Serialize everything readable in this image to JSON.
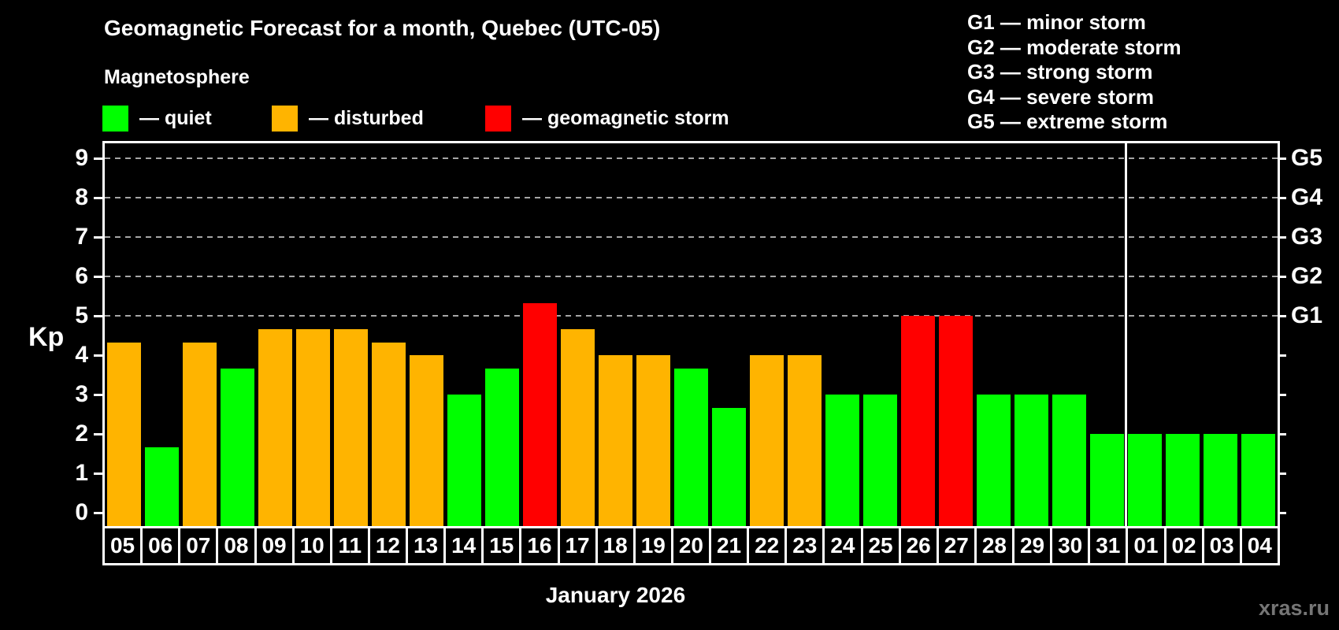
{
  "page": {
    "title": "Geomagnetic Forecast for a month, Quebec (UTC-05)",
    "subtitle": "Magnetosphere",
    "watermark": "xras.ru"
  },
  "legend": {
    "items": [
      {
        "name": "quiet",
        "label": "— quiet",
        "color": "#00ff00",
        "x": 130
      },
      {
        "name": "disturbed",
        "label": "— disturbed",
        "color": "#ffb400",
        "x": 345
      },
      {
        "name": "geomagnetic-storm",
        "label": "— geomagnetic storm",
        "color": "#ff0000",
        "x": 616
      }
    ]
  },
  "storm_scale_legend": [
    "G1 — minor storm",
    "G2 — moderate storm",
    "G3 — strong storm",
    "G4 — severe storm",
    "G5 — extreme storm"
  ],
  "chart_data": {
    "type": "bar",
    "title": "Geomagnetic Forecast for a month, Quebec (UTC-05)",
    "ylabel": "Kp",
    "xlabel": "January 2026",
    "ylim": [
      -0.34,
      9.6
    ],
    "yticks": [
      0,
      1,
      2,
      3,
      4,
      5,
      6,
      7,
      8,
      9
    ],
    "gridlines_at": [
      5,
      6,
      7,
      8,
      9
    ],
    "grid_style": "dashed",
    "legend_position": "top-left",
    "right_axis_labels": [
      {
        "kp": 5,
        "label": "G1"
      },
      {
        "kp": 6,
        "label": "G2"
      },
      {
        "kp": 7,
        "label": "G3"
      },
      {
        "kp": 8,
        "label": "G4"
      },
      {
        "kp": 9,
        "label": "G5"
      }
    ],
    "month_separator_after_index": 26,
    "categories": [
      "05",
      "06",
      "07",
      "08",
      "09",
      "10",
      "11",
      "12",
      "13",
      "14",
      "15",
      "16",
      "17",
      "18",
      "19",
      "20",
      "21",
      "22",
      "23",
      "24",
      "25",
      "26",
      "27",
      "28",
      "29",
      "30",
      "31",
      "01",
      "02",
      "03",
      "04"
    ],
    "values": [
      4.33,
      1.67,
      4.33,
      3.67,
      4.67,
      4.67,
      4.67,
      4.33,
      4.0,
      3.0,
      3.67,
      5.33,
      4.67,
      4.0,
      4.0,
      3.67,
      2.67,
      4.0,
      4.0,
      3.0,
      3.0,
      5.0,
      5.0,
      3.0,
      3.0,
      3.0,
      2.0,
      2.0,
      2.0,
      2.0,
      2.0
    ],
    "states": [
      "disturbed",
      "quiet",
      "disturbed",
      "quiet",
      "disturbed",
      "disturbed",
      "disturbed",
      "disturbed",
      "disturbed",
      "quiet",
      "quiet",
      "storm",
      "disturbed",
      "disturbed",
      "disturbed",
      "quiet",
      "quiet",
      "disturbed",
      "disturbed",
      "quiet",
      "quiet",
      "storm",
      "storm",
      "quiet",
      "quiet",
      "quiet",
      "quiet",
      "quiet",
      "quiet",
      "quiet",
      "quiet"
    ],
    "state_colors": {
      "quiet": "#00ff00",
      "disturbed": "#ffb400",
      "storm": "#ff0000"
    }
  },
  "colors": {
    "background": "#000000",
    "text": "#ffffff",
    "grid": "#a6a6a6",
    "frame": "#ffffff",
    "watermark": "#757575"
  }
}
